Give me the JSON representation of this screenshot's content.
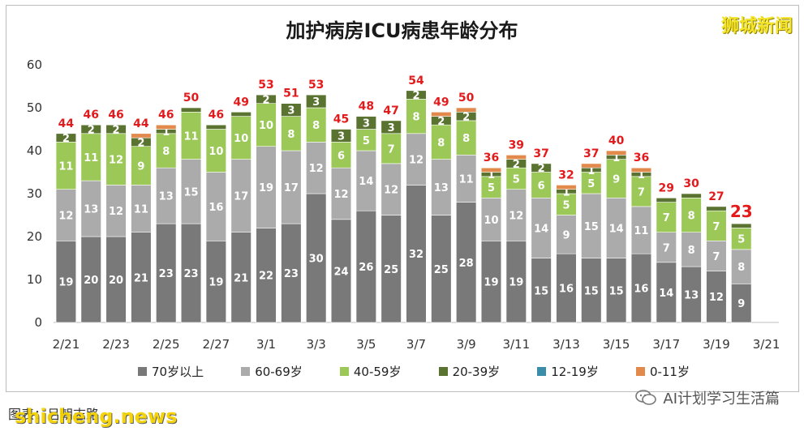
{
  "header": {
    "brand": "狮城新闻"
  },
  "footer": {
    "left_text": "图表：吕朝志路",
    "source_watermark": "shicheng.news",
    "account_name": "AI计划学习生活篇",
    "account_icon": "wechat-icon"
  },
  "colors": {
    "s70": "#797979",
    "s60": "#ababab",
    "s40": "#9bc857",
    "s20": "#5a7330",
    "s12": "#3a8ea9",
    "s0": "#e2894c",
    "total_label": "#e31a1c"
  },
  "chart_data": {
    "type": "bar",
    "stacked": true,
    "title": "加护病房ICU病患年龄分布",
    "xlabel": "",
    "ylabel": "",
    "ylim": [
      0,
      60
    ],
    "yticks": [
      0,
      10,
      20,
      30,
      40,
      50,
      60
    ],
    "grid": false,
    "legend_position": "bottom",
    "categories": [
      "2/21",
      "2/22",
      "2/23",
      "2/24",
      "2/25",
      "2/26",
      "2/27",
      "2/28",
      "3/1",
      "3/2",
      "3/3",
      "3/4",
      "3/5",
      "3/6",
      "3/7",
      "3/8",
      "3/9",
      "3/10",
      "3/11",
      "3/12",
      "3/13",
      "3/14",
      "3/15",
      "3/16",
      "3/17",
      "3/18",
      "3/19",
      "3/20"
    ],
    "x_tick_labels": [
      "2/21",
      "2/23",
      "2/25",
      "2/27",
      "3/1",
      "3/3",
      "3/5",
      "3/7",
      "3/9",
      "3/11",
      "3/13",
      "3/15",
      "3/17",
      "3/19",
      "3/21"
    ],
    "series": [
      {
        "name": "70岁以上",
        "values": [
          19,
          20,
          20,
          21,
          23,
          23,
          19,
          21,
          22,
          23,
          30,
          24,
          26,
          25,
          32,
          25,
          28,
          19,
          19,
          15,
          16,
          15,
          15,
          16,
          14,
          13,
          12,
          9
        ]
      },
      {
        "name": "60-69岁",
        "values": [
          12,
          13,
          12,
          11,
          13,
          15,
          16,
          17,
          19,
          17,
          12,
          12,
          14,
          12,
          12,
          13,
          11,
          10,
          12,
          14,
          9,
          15,
          14,
          11,
          7,
          8,
          7,
          8
        ]
      },
      {
        "name": "40-59岁",
        "values": [
          11,
          11,
          12,
          9,
          8,
          11,
          10,
          10,
          10,
          8,
          8,
          6,
          5,
          7,
          8,
          8,
          8,
          5,
          5,
          6,
          5,
          5,
          9,
          7,
          7,
          8,
          7,
          5
        ]
      },
      {
        "name": "20-39岁",
        "values": [
          2,
          2,
          2,
          2,
          1,
          1,
          1,
          1,
          2,
          3,
          3,
          3,
          3,
          3,
          2,
          2,
          2,
          1,
          2,
          2,
          1,
          1,
          1,
          1,
          1,
          1,
          1,
          1
        ]
      },
      {
        "name": "12-19岁",
        "values": [
          0,
          0,
          0,
          0,
          0,
          0,
          0,
          0,
          0,
          0,
          0,
          0,
          0,
          0,
          0,
          0,
          0,
          0,
          0,
          0,
          0,
          0,
          0,
          0,
          0,
          0,
          0,
          0
        ]
      },
      {
        "name": "0-11岁",
        "values": [
          0,
          0,
          0,
          1,
          1,
          0,
          0,
          0,
          0,
          0,
          0,
          0,
          0,
          0,
          0,
          1,
          1,
          1,
          1,
          0,
          1,
          1,
          1,
          1,
          0,
          0,
          0,
          0
        ]
      }
    ],
    "totals": [
      44,
      46,
      46,
      44,
      46,
      50,
      46,
      49,
      53,
      51,
      53,
      45,
      48,
      47,
      54,
      49,
      50,
      36,
      39,
      37,
      32,
      37,
      40,
      36,
      29,
      30,
      27,
      23
    ],
    "segment_labels": [
      [
        "19",
        "12",
        "11",
        "2",
        "",
        ""
      ],
      [
        "20",
        "13",
        "11",
        "2",
        "",
        ""
      ],
      [
        "20",
        "12",
        "12",
        "2",
        "",
        ""
      ],
      [
        "21",
        "11",
        "9",
        "2",
        "",
        ""
      ],
      [
        "23",
        "13",
        "8",
        "1",
        "",
        ""
      ],
      [
        "23",
        "15",
        "11",
        "",
        "",
        ""
      ],
      [
        "19",
        "16",
        "10",
        "",
        "",
        ""
      ],
      [
        "21",
        "17",
        "10",
        "",
        "",
        ""
      ],
      [
        "22",
        "19",
        "10",
        "2",
        "",
        ""
      ],
      [
        "23",
        "17",
        "8",
        "3",
        "",
        ""
      ],
      [
        "30",
        "12",
        "8",
        "3",
        "",
        ""
      ],
      [
        "24",
        "12",
        "6",
        "3",
        "",
        ""
      ],
      [
        "26",
        "14",
        "5",
        "3",
        "",
        ""
      ],
      [
        "25",
        "12",
        "7",
        "3",
        "",
        ""
      ],
      [
        "32",
        "12",
        "8",
        "2",
        "",
        ""
      ],
      [
        "25",
        "13",
        "8",
        "2",
        "",
        ""
      ],
      [
        "28",
        "11",
        "8",
        "2",
        "",
        ""
      ],
      [
        "19",
        "10",
        "5",
        "1",
        "",
        ""
      ],
      [
        "19",
        "12",
        "5",
        "2",
        "",
        ""
      ],
      [
        "15",
        "14",
        "6",
        "2",
        "",
        ""
      ],
      [
        "16",
        "9",
        "5",
        "1",
        "",
        ""
      ],
      [
        "15",
        "15",
        "5",
        "1",
        "",
        ""
      ],
      [
        "15",
        "14",
        "9",
        "1",
        "",
        ""
      ],
      [
        "16",
        "11",
        "7",
        "1",
        "",
        ""
      ],
      [
        "14",
        "7",
        "7",
        "",
        "",
        ""
      ],
      [
        "13",
        "8",
        "8",
        "",
        "",
        ""
      ],
      [
        "12",
        "7",
        "7",
        "",
        "",
        ""
      ],
      [
        "9",
        "8",
        "5",
        "",
        "",
        ""
      ]
    ]
  }
}
